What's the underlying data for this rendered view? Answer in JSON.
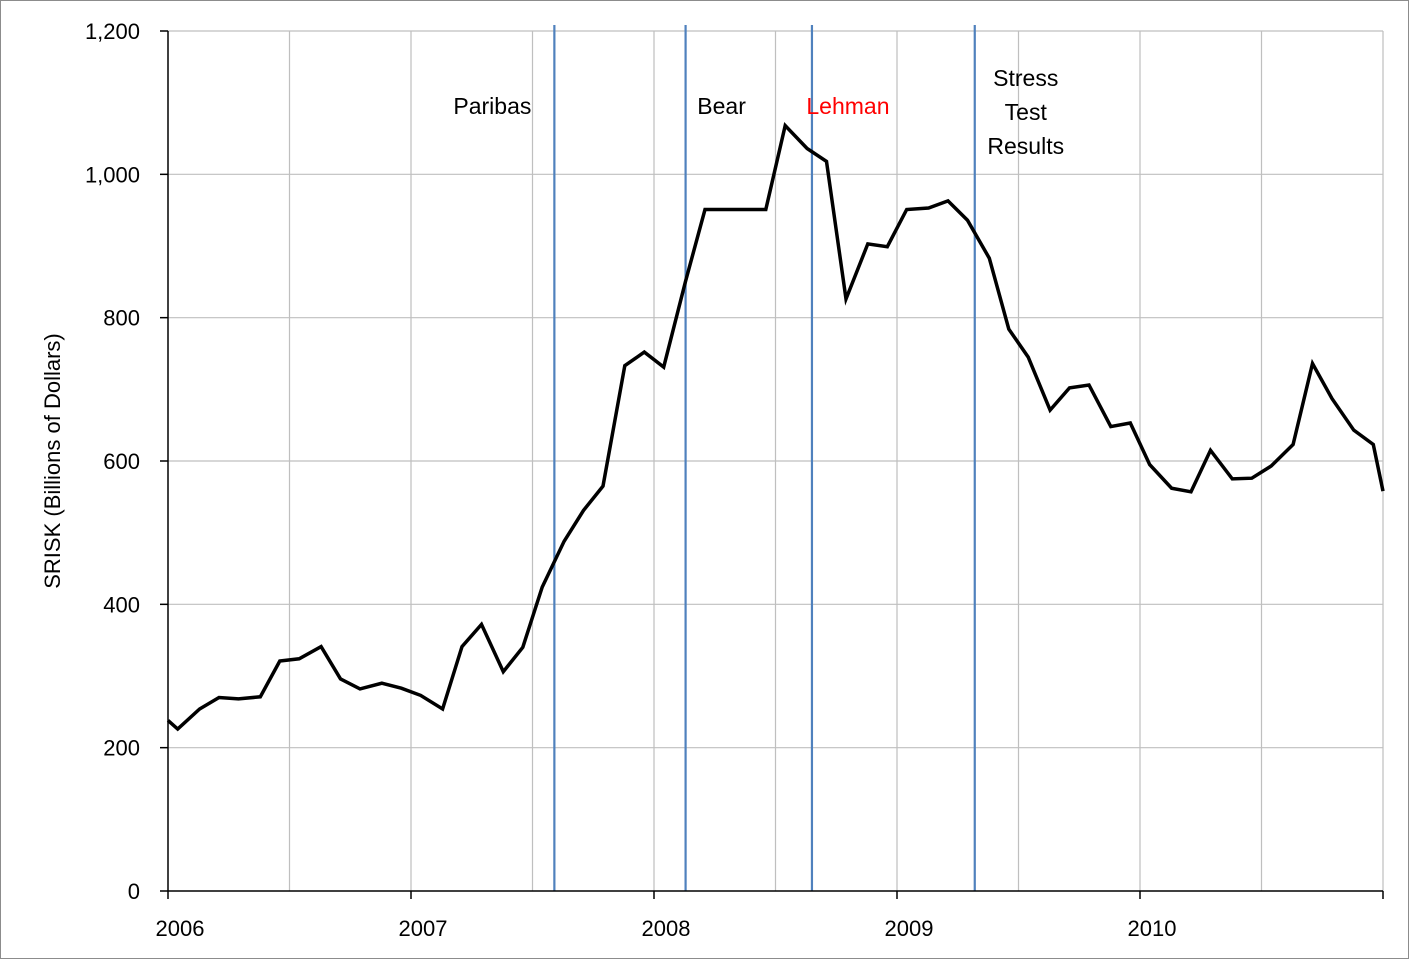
{
  "chart_data": {
    "type": "line",
    "title": "",
    "xlabel": "",
    "ylabel": "SRISK (Billions of Dollars)",
    "xlim": [
      2006.0,
      2011.0
    ],
    "ylim": [
      0,
      1200
    ],
    "grid": true,
    "x_ticks": [
      {
        "value": 2006,
        "label": "2006"
      },
      {
        "value": 2007,
        "label": "2007"
      },
      {
        "value": 2008,
        "label": "2008"
      },
      {
        "value": 2009,
        "label": "2009"
      },
      {
        "value": 2010,
        "label": "2010"
      }
    ],
    "x_minor_grid": [
      2006.5,
      2007.5,
      2008.5,
      2009.5,
      2010.5
    ],
    "y_ticks": [
      {
        "value": 0,
        "label": "0"
      },
      {
        "value": 200,
        "label": "200"
      },
      {
        "value": 400,
        "label": "400"
      },
      {
        "value": 600,
        "label": "600"
      },
      {
        "value": 800,
        "label": "800"
      },
      {
        "value": 1000,
        "label": "1,000"
      },
      {
        "value": 1200,
        "label": "1,200"
      }
    ],
    "colors": {
      "series": "#000000",
      "event_line": "#4f81bd",
      "grid": "#bfbfbf",
      "axis": "#000000",
      "annotation": "#000000",
      "annotation_highlight": "#ff0000"
    },
    "series": [
      {
        "x": [
          2006.0,
          2006.04,
          2006.13,
          2006.21,
          2006.29,
          2006.38,
          2006.46,
          2006.54,
          2006.63,
          2006.71,
          2006.79,
          2006.88,
          2006.96,
          2007.04,
          2007.13,
          2007.21,
          2007.29,
          2007.38,
          2007.46,
          2007.54,
          2007.63,
          2007.71,
          2007.79,
          2007.88,
          2007.96,
          2008.04,
          2008.13,
          2008.21,
          2008.29,
          2008.38,
          2008.46,
          2008.54,
          2008.63,
          2008.71,
          2008.79,
          2008.88,
          2008.96,
          2009.04,
          2009.13,
          2009.21,
          2009.29,
          2009.38,
          2009.46,
          2009.54,
          2009.63,
          2009.71,
          2009.79,
          2009.88,
          2009.96,
          2010.04,
          2010.13,
          2010.21,
          2010.29,
          2010.38,
          2010.46,
          2010.54,
          2010.63,
          2010.71,
          2010.79,
          2010.88,
          2010.96,
          2011.0
        ],
        "values": [
          238,
          226,
          254,
          270,
          268,
          271,
          321,
          324,
          341,
          296,
          282,
          290,
          283,
          273,
          254,
          341,
          372,
          306,
          340,
          424,
          488,
          531,
          565,
          733,
          752,
          731,
          851,
          951,
          951,
          951,
          951,
          1068,
          1036,
          1018,
          826,
          903,
          899,
          951,
          953,
          963,
          936,
          883,
          784,
          745,
          671,
          702,
          706,
          648,
          653,
          595,
          562,
          557,
          615,
          575,
          576,
          593,
          623,
          736,
          687,
          643,
          623,
          558
        ]
      }
    ],
    "events": [
      {
        "x": 2007.59,
        "label": [
          "Paribas"
        ],
        "highlight": false
      },
      {
        "x": 2008.13,
        "label": [
          "Bear"
        ],
        "highlight": false
      },
      {
        "x": 2008.65,
        "label": [
          "Lehman"
        ],
        "highlight": true
      },
      {
        "x": 2009.32,
        "label": [
          "Stress",
          "Test",
          "Results"
        ],
        "highlight": false
      }
    ]
  }
}
